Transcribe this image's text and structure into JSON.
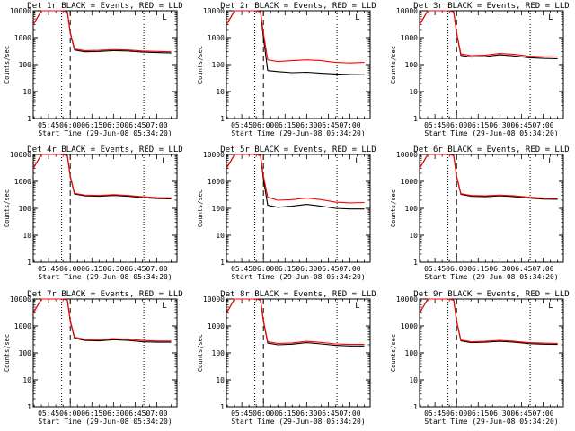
{
  "chart_data": [
    {
      "type": "line",
      "title": "Det 1r BLACK = Events, RED = LLD",
      "xlabel": "Start Time (29-Jun-08 05:34:20)",
      "ylabel": "Counts/sec",
      "yscale": "log",
      "ylim": [
        1,
        10000
      ],
      "y_ticks": [
        "1",
        "10",
        "100",
        "1000",
        "10000"
      ],
      "x_range": [
        "05:34:20",
        "07:14:00"
      ],
      "x_ticks": [
        "05:45",
        "06:00",
        "06:15",
        "06:30",
        "06:45",
        "07:00"
      ],
      "grid": false,
      "dotted_marker_times": [
        "05:54",
        "06:51"
      ],
      "dashed_marker_times": [
        "06:00"
      ],
      "corner_label": "L",
      "series": [
        {
          "name": "Events",
          "color": "#000000",
          "x": [
            "05:34:20",
            "05:40",
            "05:45",
            "05:50",
            "05:55",
            "05:58",
            "06:00",
            "06:03",
            "06:10",
            "06:20",
            "06:30",
            "06:40",
            "06:50",
            "07:00",
            "07:10"
          ],
          "y": [
            3000,
            10000,
            10000,
            10000,
            10000,
            9000,
            1500,
            350,
            300,
            310,
            330,
            320,
            290,
            280,
            270
          ]
        },
        {
          "name": "LLD",
          "color": "#ff0000",
          "x": [
            "05:34:20",
            "05:40",
            "05:45",
            "05:50",
            "05:55",
            "05:58",
            "06:00",
            "06:03",
            "06:10",
            "06:20",
            "06:30",
            "06:40",
            "06:50",
            "07:00",
            "07:10"
          ],
          "y": [
            3000,
            10000,
            10000,
            10000,
            10000,
            9000,
            1600,
            380,
            330,
            340,
            360,
            350,
            320,
            310,
            300
          ]
        }
      ]
    },
    {
      "type": "line",
      "title": "Det 2r BLACK = Events, RED = LLD",
      "xlabel": "Start Time (29-Jun-08 05:34:20)",
      "ylabel": "Counts/sec",
      "yscale": "log",
      "ylim": [
        1,
        10000
      ],
      "y_ticks": [
        "1",
        "10",
        "100",
        "1000",
        "10000"
      ],
      "x_range": [
        "05:34:20",
        "07:14:00"
      ],
      "x_ticks": [
        "05:45",
        "06:00",
        "06:15",
        "06:30",
        "06:45",
        "07:00"
      ],
      "grid": false,
      "dotted_marker_times": [
        "05:54",
        "06:51"
      ],
      "dashed_marker_times": [
        "06:00"
      ],
      "corner_label": "L",
      "series": [
        {
          "name": "Events",
          "color": "#000000",
          "x": [
            "05:34:20",
            "05:40",
            "05:45",
            "05:50",
            "05:55",
            "05:58",
            "06:00",
            "06:03",
            "06:10",
            "06:20",
            "06:30",
            "06:40",
            "06:50",
            "07:00",
            "07:10"
          ],
          "y": [
            3000,
            10000,
            10000,
            10000,
            10000,
            9000,
            1000,
            60,
            55,
            50,
            52,
            48,
            45,
            43,
            42
          ]
        },
        {
          "name": "LLD",
          "color": "#ff0000",
          "x": [
            "05:34:20",
            "05:40",
            "05:45",
            "05:50",
            "05:55",
            "05:58",
            "06:00",
            "06:03",
            "06:10",
            "06:20",
            "06:30",
            "06:40",
            "06:50",
            "07:00",
            "07:10"
          ],
          "y": [
            3000,
            10000,
            10000,
            10000,
            10000,
            9000,
            1500,
            150,
            130,
            140,
            150,
            140,
            120,
            115,
            120
          ]
        }
      ]
    },
    {
      "type": "line",
      "title": "Det 3r BLACK = Events, RED = LLD",
      "xlabel": "Start Time (29-Jun-08 05:34:20)",
      "ylabel": "Counts/sec",
      "yscale": "log",
      "ylim": [
        1,
        10000
      ],
      "y_ticks": [
        "1",
        "10",
        "100",
        "1000",
        "10000"
      ],
      "x_range": [
        "05:34:20",
        "07:14:00"
      ],
      "x_ticks": [
        "05:45",
        "06:00",
        "06:15",
        "06:30",
        "06:45",
        "07:00"
      ],
      "grid": false,
      "dotted_marker_times": [
        "05:54",
        "06:51"
      ],
      "dashed_marker_times": [
        "06:00"
      ],
      "corner_label": "L",
      "series": [
        {
          "name": "Events",
          "color": "#000000",
          "x": [
            "05:34:20",
            "05:40",
            "05:45",
            "05:50",
            "05:55",
            "05:58",
            "06:00",
            "06:03",
            "06:10",
            "06:20",
            "06:30",
            "06:40",
            "06:50",
            "07:00",
            "07:10"
          ],
          "y": [
            3000,
            10000,
            10000,
            10000,
            10000,
            9000,
            1500,
            220,
            190,
            200,
            230,
            210,
            180,
            170,
            165
          ]
        },
        {
          "name": "LLD",
          "color": "#ff0000",
          "x": [
            "05:34:20",
            "05:40",
            "05:45",
            "05:50",
            "05:55",
            "05:58",
            "06:00",
            "06:03",
            "06:10",
            "06:20",
            "06:30",
            "06:40",
            "06:50",
            "07:00",
            "07:10"
          ],
          "y": [
            3000,
            10000,
            10000,
            10000,
            10000,
            9000,
            1600,
            250,
            215,
            225,
            260,
            240,
            205,
            195,
            190
          ]
        }
      ]
    },
    {
      "type": "line",
      "title": "Det 4r BLACK = Events, RED = LLD",
      "xlabel": "Start Time (29-Jun-08 05:34:20)",
      "ylabel": "Counts/sec",
      "yscale": "log",
      "ylim": [
        1,
        10000
      ],
      "y_ticks": [
        "1",
        "10",
        "100",
        "1000",
        "10000"
      ],
      "x_range": [
        "05:34:20",
        "07:14:00"
      ],
      "x_ticks": [
        "05:45",
        "06:00",
        "06:15",
        "06:30",
        "06:45",
        "07:00"
      ],
      "grid": false,
      "dotted_marker_times": [
        "05:54",
        "06:51"
      ],
      "dashed_marker_times": [
        "06:00"
      ],
      "corner_label": "L",
      "series": [
        {
          "name": "Events",
          "color": "#000000",
          "x": [
            "05:34:20",
            "05:40",
            "05:45",
            "05:50",
            "05:55",
            "05:58",
            "06:00",
            "06:03",
            "06:10",
            "06:20",
            "06:30",
            "06:40",
            "06:50",
            "07:00",
            "07:10"
          ],
          "y": [
            3000,
            10000,
            10000,
            10000,
            10000,
            9000,
            1500,
            340,
            290,
            280,
            300,
            280,
            250,
            230,
            225
          ]
        },
        {
          "name": "LLD",
          "color": "#ff0000",
          "x": [
            "05:34:20",
            "05:40",
            "05:45",
            "05:50",
            "05:55",
            "05:58",
            "06:00",
            "06:03",
            "06:10",
            "06:20",
            "06:30",
            "06:40",
            "06:50",
            "07:00",
            "07:10"
          ],
          "y": [
            3000,
            10000,
            10000,
            10000,
            10000,
            9000,
            1600,
            360,
            310,
            300,
            320,
            300,
            270,
            250,
            245
          ]
        }
      ]
    },
    {
      "type": "line",
      "title": "Det 5r BLACK = Events, RED = LLD",
      "xlabel": "Start Time (29-Jun-08 05:34:20)",
      "ylabel": "Counts/sec",
      "yscale": "log",
      "ylim": [
        1,
        10000
      ],
      "y_ticks": [
        "1",
        "10",
        "100",
        "1000",
        "10000"
      ],
      "x_range": [
        "05:34:20",
        "07:14:00"
      ],
      "x_ticks": [
        "05:45",
        "06:00",
        "06:15",
        "06:30",
        "06:45",
        "07:00"
      ],
      "grid": false,
      "dotted_marker_times": [
        "05:54",
        "06:51"
      ],
      "dashed_marker_times": [
        "06:00"
      ],
      "corner_label": "L",
      "series": [
        {
          "name": "Events",
          "color": "#000000",
          "x": [
            "05:34:20",
            "05:40",
            "05:45",
            "05:50",
            "05:55",
            "05:58",
            "06:00",
            "06:03",
            "06:10",
            "06:20",
            "06:30",
            "06:40",
            "06:50",
            "07:00",
            "07:10"
          ],
          "y": [
            3000,
            10000,
            10000,
            10000,
            10000,
            9000,
            1200,
            130,
            110,
            120,
            140,
            120,
            100,
            95,
            95
          ]
        },
        {
          "name": "LLD",
          "color": "#ff0000",
          "x": [
            "05:34:20",
            "05:40",
            "05:45",
            "05:50",
            "05:55",
            "05:58",
            "06:00",
            "06:03",
            "06:10",
            "06:20",
            "06:30",
            "06:40",
            "06:50",
            "07:00",
            "07:10"
          ],
          "y": [
            3000,
            10000,
            10000,
            10000,
            10000,
            9000,
            1600,
            260,
            200,
            210,
            240,
            210,
            170,
            160,
            165
          ]
        }
      ]
    },
    {
      "type": "line",
      "title": "Det 6r BLACK = Events, RED = LLD",
      "xlabel": "Start Time (29-Jun-08 05:34:20)",
      "ylabel": "Counts/sec",
      "yscale": "log",
      "ylim": [
        1,
        10000
      ],
      "y_ticks": [
        "1",
        "10",
        "100",
        "1000",
        "10000"
      ],
      "x_range": [
        "05:34:20",
        "07:14:00"
      ],
      "x_ticks": [
        "05:45",
        "06:00",
        "06:15",
        "06:30",
        "06:45",
        "07:00"
      ],
      "grid": false,
      "dotted_marker_times": [
        "05:54",
        "06:51"
      ],
      "dashed_marker_times": [
        "06:00"
      ],
      "corner_label": "L",
      "series": [
        {
          "name": "Events",
          "color": "#000000",
          "x": [
            "05:34:20",
            "05:40",
            "05:45",
            "05:50",
            "05:55",
            "05:58",
            "06:00",
            "06:03",
            "06:10",
            "06:20",
            "06:30",
            "06:40",
            "06:50",
            "07:00",
            "07:10"
          ],
          "y": [
            3000,
            10000,
            10000,
            10000,
            10000,
            9000,
            1500,
            330,
            280,
            270,
            290,
            270,
            240,
            220,
            215
          ]
        },
        {
          "name": "LLD",
          "color": "#ff0000",
          "x": [
            "05:34:20",
            "05:40",
            "05:45",
            "05:50",
            "05:55",
            "05:58",
            "06:00",
            "06:03",
            "06:10",
            "06:20",
            "06:30",
            "06:40",
            "06:50",
            "07:00",
            "07:10"
          ],
          "y": [
            3000,
            10000,
            10000,
            10000,
            10000,
            9000,
            1600,
            350,
            300,
            290,
            310,
            290,
            260,
            240,
            235
          ]
        }
      ]
    },
    {
      "type": "line",
      "title": "Det 7r BLACK = Events, RED = LLD",
      "xlabel": "Start Time (29-Jun-08 05:34:20)",
      "ylabel": "Counts/sec",
      "yscale": "log",
      "ylim": [
        1,
        10000
      ],
      "y_ticks": [
        "1",
        "10",
        "100",
        "1000",
        "10000"
      ],
      "x_range": [
        "05:34:20",
        "07:14:00"
      ],
      "x_ticks": [
        "05:45",
        "06:00",
        "06:15",
        "06:30",
        "06:45",
        "07:00"
      ],
      "grid": false,
      "dotted_marker_times": [
        "05:54",
        "06:51"
      ],
      "dashed_marker_times": [
        "06:00"
      ],
      "corner_label": "L",
      "series": [
        {
          "name": "Events",
          "color": "#000000",
          "x": [
            "05:34:20",
            "05:40",
            "05:45",
            "05:50",
            "05:55",
            "05:58",
            "06:00",
            "06:03",
            "06:10",
            "06:20",
            "06:30",
            "06:40",
            "06:50",
            "07:00",
            "07:10"
          ],
          "y": [
            3000,
            10000,
            10000,
            10000,
            10000,
            9000,
            1500,
            350,
            290,
            280,
            310,
            290,
            260,
            250,
            250
          ]
        },
        {
          "name": "LLD",
          "color": "#ff0000",
          "x": [
            "05:34:20",
            "05:40",
            "05:45",
            "05:50",
            "05:55",
            "05:58",
            "06:00",
            "06:03",
            "06:10",
            "06:20",
            "06:30",
            "06:40",
            "06:50",
            "07:00",
            "07:10"
          ],
          "y": [
            3000,
            10000,
            10000,
            10000,
            10000,
            9000,
            1600,
            380,
            320,
            310,
            340,
            320,
            290,
            275,
            275
          ]
        }
      ]
    },
    {
      "type": "line",
      "title": "Det 8r BLACK = Events, RED = LLD",
      "xlabel": "Start Time (29-Jun-08 05:34:20)",
      "ylabel": "Counts/sec",
      "yscale": "log",
      "ylim": [
        1,
        10000
      ],
      "y_ticks": [
        "1",
        "10",
        "100",
        "1000",
        "10000"
      ],
      "x_range": [
        "05:34:20",
        "07:14:00"
      ],
      "x_ticks": [
        "05:45",
        "06:00",
        "06:15",
        "06:30",
        "06:45",
        "07:00"
      ],
      "grid": false,
      "dotted_marker_times": [
        "05:54",
        "06:51"
      ],
      "dashed_marker_times": [
        "06:00"
      ],
      "corner_label": "L",
      "series": [
        {
          "name": "Events",
          "color": "#000000",
          "x": [
            "05:34:20",
            "05:40",
            "05:45",
            "05:50",
            "05:55",
            "05:58",
            "06:00",
            "06:03",
            "06:10",
            "06:20",
            "06:30",
            "06:40",
            "06:50",
            "07:00",
            "07:10"
          ],
          "y": [
            3000,
            10000,
            10000,
            10000,
            10000,
            9000,
            1500,
            230,
            200,
            210,
            240,
            215,
            190,
            180,
            180
          ]
        },
        {
          "name": "LLD",
          "color": "#ff0000",
          "x": [
            "05:34:20",
            "05:40",
            "05:45",
            "05:50",
            "05:55",
            "05:58",
            "06:00",
            "06:03",
            "06:10",
            "06:20",
            "06:30",
            "06:40",
            "06:50",
            "07:00",
            "07:10"
          ],
          "y": [
            3000,
            10000,
            10000,
            10000,
            10000,
            9000,
            1600,
            260,
            225,
            235,
            270,
            245,
            215,
            205,
            205
          ]
        }
      ]
    },
    {
      "type": "line",
      "title": "Det 9r BLACK = Events, RED = LLD",
      "xlabel": "Start Time (29-Jun-08 05:34:20)",
      "ylabel": "Counts/sec",
      "yscale": "log",
      "ylim": [
        1,
        10000
      ],
      "y_ticks": [
        "1",
        "10",
        "100",
        "1000",
        "10000"
      ],
      "x_range": [
        "05:34:20",
        "07:14:00"
      ],
      "x_ticks": [
        "05:45",
        "06:00",
        "06:15",
        "06:30",
        "06:45",
        "07:00"
      ],
      "grid": false,
      "dotted_marker_times": [
        "05:54",
        "06:51"
      ],
      "dashed_marker_times": [
        "06:00"
      ],
      "corner_label": "L",
      "series": [
        {
          "name": "Events",
          "color": "#000000",
          "x": [
            "05:34:20",
            "05:40",
            "05:45",
            "05:50",
            "05:55",
            "05:58",
            "06:00",
            "06:03",
            "06:10",
            "06:20",
            "06:30",
            "06:40",
            "06:50",
            "07:00",
            "07:10"
          ],
          "y": [
            3000,
            10000,
            10000,
            10000,
            10000,
            9000,
            1500,
            280,
            240,
            250,
            270,
            250,
            220,
            210,
            205
          ]
        },
        {
          "name": "LLD",
          "color": "#ff0000",
          "x": [
            "05:34:20",
            "05:40",
            "05:45",
            "05:50",
            "05:55",
            "05:58",
            "06:00",
            "06:03",
            "06:10",
            "06:20",
            "06:30",
            "06:40",
            "06:50",
            "07:00",
            "07:10"
          ],
          "y": [
            3000,
            10000,
            10000,
            10000,
            10000,
            9000,
            1600,
            300,
            260,
            270,
            290,
            270,
            240,
            230,
            225
          ]
        }
      ]
    }
  ]
}
